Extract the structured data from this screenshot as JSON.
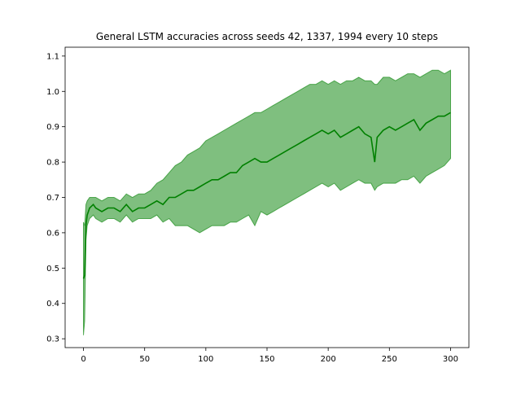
{
  "chart_data": {
    "type": "area",
    "title": "General LSTM accuracies across seeds 42, 1337, 1994 every 10 steps",
    "xlabel": "",
    "ylabel": "",
    "xlim": [
      -15,
      315
    ],
    "ylim": [
      0.275,
      1.125
    ],
    "xticks": [
      0,
      50,
      100,
      150,
      200,
      250,
      300
    ],
    "yticks": [
      0.3,
      0.4,
      0.5,
      0.6,
      0.7,
      0.8,
      0.9,
      1.0,
      1.1
    ],
    "xtick_labels": [
      "0",
      "50",
      "100",
      "150",
      "200",
      "250",
      "300"
    ],
    "ytick_labels": [
      "0.3",
      "0.4",
      "0.5",
      "0.6",
      "0.7",
      "0.8",
      "0.9",
      "1.0",
      "1.1"
    ],
    "grid": false,
    "colors": {
      "line": "#008000",
      "band": "#008000",
      "band_opacity": 0.5
    },
    "series": [
      {
        "x": [
          0,
          1,
          2,
          3,
          5,
          8,
          10,
          15,
          20,
          25,
          30,
          35,
          40,
          45,
          50,
          55,
          60,
          65,
          70,
          75,
          80,
          85,
          90,
          95,
          100,
          105,
          110,
          115,
          120,
          125,
          130,
          135,
          140,
          145,
          150,
          155,
          160,
          165,
          170,
          175,
          180,
          185,
          190,
          195,
          200,
          205,
          210,
          215,
          220,
          225,
          230,
          235,
          238,
          240,
          245,
          250,
          255,
          260,
          265,
          270,
          275,
          280,
          285,
          290,
          295,
          300
        ],
        "mean": [
          0.47,
          0.48,
          0.62,
          0.65,
          0.67,
          0.68,
          0.67,
          0.66,
          0.67,
          0.67,
          0.66,
          0.68,
          0.66,
          0.67,
          0.67,
          0.68,
          0.69,
          0.68,
          0.7,
          0.7,
          0.71,
          0.72,
          0.72,
          0.73,
          0.74,
          0.75,
          0.75,
          0.76,
          0.77,
          0.77,
          0.79,
          0.8,
          0.81,
          0.8,
          0.8,
          0.81,
          0.82,
          0.83,
          0.84,
          0.85,
          0.86,
          0.87,
          0.88,
          0.89,
          0.88,
          0.89,
          0.87,
          0.88,
          0.89,
          0.9,
          0.88,
          0.87,
          0.8,
          0.87,
          0.89,
          0.9,
          0.89,
          0.9,
          0.91,
          0.92,
          0.89,
          0.91,
          0.92,
          0.93,
          0.93,
          0.94
        ],
        "lower": [
          0.31,
          0.35,
          0.58,
          0.62,
          0.64,
          0.65,
          0.64,
          0.63,
          0.64,
          0.64,
          0.63,
          0.65,
          0.63,
          0.64,
          0.64,
          0.64,
          0.65,
          0.63,
          0.64,
          0.62,
          0.62,
          0.62,
          0.61,
          0.6,
          0.61,
          0.62,
          0.62,
          0.62,
          0.63,
          0.63,
          0.64,
          0.65,
          0.62,
          0.66,
          0.65,
          0.66,
          0.67,
          0.68,
          0.69,
          0.7,
          0.71,
          0.72,
          0.73,
          0.74,
          0.73,
          0.74,
          0.72,
          0.73,
          0.74,
          0.75,
          0.74,
          0.74,
          0.72,
          0.73,
          0.74,
          0.74,
          0.74,
          0.75,
          0.75,
          0.76,
          0.74,
          0.76,
          0.77,
          0.78,
          0.79,
          0.81
        ],
        "upper": [
          0.63,
          0.62,
          0.68,
          0.69,
          0.7,
          0.7,
          0.7,
          0.69,
          0.7,
          0.7,
          0.69,
          0.71,
          0.7,
          0.71,
          0.71,
          0.72,
          0.74,
          0.75,
          0.77,
          0.79,
          0.8,
          0.82,
          0.83,
          0.84,
          0.86,
          0.87,
          0.88,
          0.89,
          0.9,
          0.91,
          0.92,
          0.93,
          0.94,
          0.94,
          0.95,
          0.96,
          0.97,
          0.98,
          0.99,
          1.0,
          1.01,
          1.02,
          1.02,
          1.03,
          1.02,
          1.03,
          1.02,
          1.03,
          1.03,
          1.04,
          1.03,
          1.03,
          1.02,
          1.02,
          1.04,
          1.04,
          1.03,
          1.04,
          1.05,
          1.05,
          1.04,
          1.05,
          1.06,
          1.06,
          1.05,
          1.06
        ]
      }
    ]
  }
}
